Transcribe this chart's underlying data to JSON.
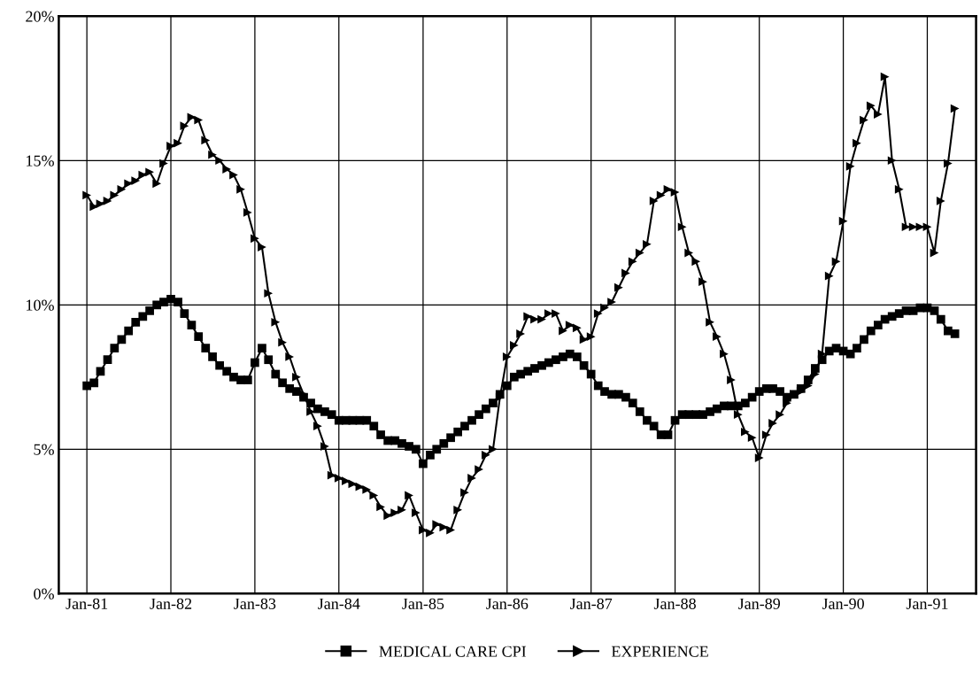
{
  "chart_data": {
    "type": "line",
    "x": [
      "1981-01",
      "1981-02",
      "1981-03",
      "1981-04",
      "1981-05",
      "1981-06",
      "1981-07",
      "1981-08",
      "1981-09",
      "1981-10",
      "1981-11",
      "1981-12",
      "1982-01",
      "1982-02",
      "1982-03",
      "1982-04",
      "1982-05",
      "1982-06",
      "1982-07",
      "1982-08",
      "1982-09",
      "1982-10",
      "1982-11",
      "1982-12",
      "1983-01",
      "1983-02",
      "1983-03",
      "1983-04",
      "1983-05",
      "1983-06",
      "1983-07",
      "1983-08",
      "1983-09",
      "1983-10",
      "1983-11",
      "1983-12",
      "1984-01",
      "1984-02",
      "1984-03",
      "1984-04",
      "1984-05",
      "1984-06",
      "1984-07",
      "1984-08",
      "1984-09",
      "1984-10",
      "1984-11",
      "1984-12",
      "1985-01",
      "1985-02",
      "1985-03",
      "1985-04",
      "1985-05",
      "1985-06",
      "1985-07",
      "1985-08",
      "1985-09",
      "1985-10",
      "1985-11",
      "1985-12",
      "1986-01",
      "1986-02",
      "1986-03",
      "1986-04",
      "1986-05",
      "1986-06",
      "1986-07",
      "1986-08",
      "1986-09",
      "1986-10",
      "1986-11",
      "1986-12",
      "1987-01",
      "1987-02",
      "1987-03",
      "1987-04",
      "1987-05",
      "1987-06",
      "1987-07",
      "1987-08",
      "1987-09",
      "1987-10",
      "1987-11",
      "1987-12",
      "1988-01",
      "1988-02",
      "1988-03",
      "1988-04",
      "1988-05",
      "1988-06",
      "1988-07",
      "1988-08",
      "1988-09",
      "1988-10",
      "1988-11",
      "1988-12",
      "1989-01",
      "1989-02",
      "1989-03",
      "1989-04",
      "1989-05",
      "1989-06",
      "1989-07",
      "1989-08",
      "1989-09",
      "1989-10",
      "1989-11",
      "1989-12",
      "1990-01",
      "1990-02",
      "1990-03",
      "1990-04",
      "1990-05",
      "1990-06",
      "1990-07",
      "1990-08",
      "1990-09",
      "1990-10",
      "1990-11",
      "1990-12",
      "1991-01",
      "1991-02",
      "1991-03",
      "1991-04",
      "1991-05"
    ],
    "xlim": [
      "1980-09",
      "1991-08"
    ],
    "xticks": [
      {
        "value": "1981-01",
        "label": "Jan-81"
      },
      {
        "value": "1982-01",
        "label": "Jan-82"
      },
      {
        "value": "1983-01",
        "label": "Jan-83"
      },
      {
        "value": "1984-01",
        "label": "Jan-84"
      },
      {
        "value": "1985-01",
        "label": "Jan-85"
      },
      {
        "value": "1986-01",
        "label": "Jan-86"
      },
      {
        "value": "1987-01",
        "label": "Jan-87"
      },
      {
        "value": "1988-01",
        "label": "Jan-88"
      },
      {
        "value": "1989-01",
        "label": "Jan-89"
      },
      {
        "value": "1990-01",
        "label": "Jan-90"
      },
      {
        "value": "1991-01",
        "label": "Jan-91"
      }
    ],
    "ylim": [
      0,
      20
    ],
    "yticks": [
      {
        "value": 0,
        "label": "0%"
      },
      {
        "value": 5,
        "label": "5%"
      },
      {
        "value": 10,
        "label": "10%"
      },
      {
        "value": 15,
        "label": "15%"
      },
      {
        "value": 20,
        "label": "20%"
      }
    ],
    "grid": true,
    "legend": "bottom",
    "line_style": "solid",
    "series": [
      {
        "name": "MEDICAL CARE CPI",
        "color": "#000000",
        "marker": "square",
        "values": [
          7.2,
          7.3,
          7.7,
          8.1,
          8.5,
          8.8,
          9.1,
          9.4,
          9.6,
          9.8,
          10.0,
          10.1,
          10.2,
          10.1,
          9.7,
          9.3,
          8.9,
          8.5,
          8.2,
          7.9,
          7.7,
          7.5,
          7.4,
          7.4,
          8.0,
          8.5,
          8.1,
          7.6,
          7.3,
          7.1,
          7.0,
          6.8,
          6.6,
          6.4,
          6.3,
          6.2,
          6.0,
          6.0,
          6.0,
          6.0,
          6.0,
          5.8,
          5.5,
          5.3,
          5.3,
          5.2,
          5.1,
          5.0,
          4.5,
          4.8,
          5.0,
          5.2,
          5.4,
          5.6,
          5.8,
          6.0,
          6.2,
          6.4,
          6.6,
          6.9,
          7.2,
          7.5,
          7.6,
          7.7,
          7.8,
          7.9,
          8.0,
          8.1,
          8.2,
          8.3,
          8.2,
          7.9,
          7.6,
          7.2,
          7.0,
          6.9,
          6.9,
          6.8,
          6.6,
          6.3,
          6.0,
          5.8,
          5.5,
          5.5,
          6.0,
          6.2,
          6.2,
          6.2,
          6.2,
          6.3,
          6.4,
          6.5,
          6.5,
          6.5,
          6.6,
          6.8,
          7.0,
          7.1,
          7.1,
          7.0,
          6.8,
          6.9,
          7.1,
          7.4,
          7.8,
          8.1,
          8.4,
          8.5,
          8.4,
          8.3,
          8.5,
          8.8,
          9.1,
          9.3,
          9.5,
          9.6,
          9.7,
          9.8,
          9.8,
          9.9,
          9.9,
          9.8,
          9.5,
          9.1,
          9.0
        ]
      },
      {
        "name": "EXPERIENCE",
        "color": "#000000",
        "marker": "triangle",
        "values": [
          13.8,
          13.4,
          13.5,
          13.6,
          13.8,
          14.0,
          14.2,
          14.3,
          14.5,
          14.6,
          14.2,
          14.9,
          15.5,
          15.6,
          16.2,
          16.5,
          16.4,
          15.7,
          15.2,
          15.0,
          14.7,
          14.5,
          14.0,
          13.2,
          12.3,
          12.0,
          10.4,
          9.4,
          8.7,
          8.2,
          7.5,
          6.9,
          6.3,
          5.8,
          5.1,
          4.1,
          4.0,
          3.9,
          3.8,
          3.7,
          3.6,
          3.4,
          3.0,
          2.7,
          2.8,
          2.9,
          3.4,
          2.8,
          2.2,
          2.1,
          2.4,
          2.3,
          2.2,
          2.9,
          3.5,
          4.0,
          4.3,
          4.8,
          5.0,
          6.8,
          8.2,
          8.6,
          9.0,
          9.6,
          9.5,
          9.5,
          9.7,
          9.7,
          9.1,
          9.3,
          9.2,
          8.8,
          8.9,
          9.7,
          9.9,
          10.1,
          10.6,
          11.1,
          11.5,
          11.8,
          12.1,
          13.6,
          13.8,
          14.0,
          13.9,
          12.7,
          11.8,
          11.5,
          10.8,
          9.4,
          8.9,
          8.3,
          7.4,
          6.2,
          5.6,
          5.4,
          4.7,
          5.5,
          5.9,
          6.2,
          6.6,
          6.9,
          7.0,
          7.2,
          7.6,
          8.3,
          11.0,
          11.5,
          12.9,
          14.8,
          15.6,
          16.4,
          16.9,
          16.6,
          17.9,
          15.0,
          14.0,
          12.7,
          12.7,
          12.7,
          12.7,
          11.8,
          13.6,
          14.9,
          16.8
        ]
      }
    ]
  }
}
